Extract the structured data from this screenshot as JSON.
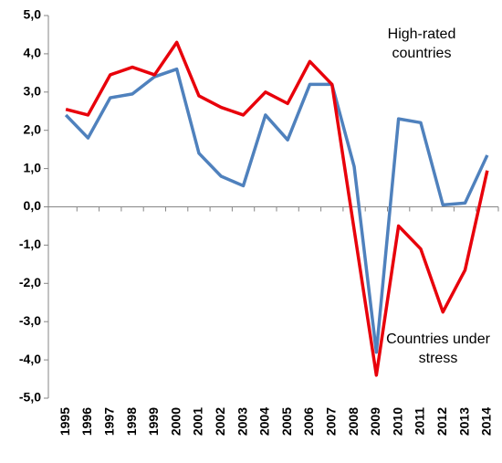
{
  "chart_data": {
    "type": "line",
    "categories": [
      "1995",
      "1996",
      "1997",
      "1998",
      "1999",
      "2000",
      "2001",
      "2002",
      "2003",
      "2004",
      "2005",
      "2006",
      "2007",
      "2008",
      "2009",
      "2010",
      "2011",
      "2012",
      "2013",
      "2014"
    ],
    "series": [
      {
        "name": "High-rated countries",
        "color": "#4f81bd",
        "values": [
          2.4,
          1.8,
          2.85,
          2.95,
          3.4,
          3.6,
          1.4,
          0.8,
          0.55,
          2.4,
          1.75,
          3.2,
          3.2,
          1.05,
          -3.8,
          2.3,
          2.2,
          0.05,
          0.1,
          1.35
        ]
      },
      {
        "name": "Countries under stress",
        "color": "#e8000b",
        "values": [
          2.55,
          2.4,
          3.45,
          3.65,
          3.45,
          4.3,
          2.9,
          2.6,
          2.4,
          3.0,
          2.7,
          3.8,
          3.2,
          -0.6,
          -4.4,
          -0.5,
          -1.1,
          -2.75,
          -1.65,
          0.95
        ]
      }
    ],
    "ylim": [
      -5,
      5
    ],
    "yticks": [
      {
        "value": 5,
        "label": "5,0"
      },
      {
        "value": 4,
        "label": "4,0"
      },
      {
        "value": 3,
        "label": "3,0"
      },
      {
        "value": 2,
        "label": "2,0"
      },
      {
        "value": 1,
        "label": "1,0"
      },
      {
        "value": 0,
        "label": "0,0"
      },
      {
        "value": -1,
        "label": "-1,0"
      },
      {
        "value": -2,
        "label": "-2,0"
      },
      {
        "value": -3,
        "label": "-3,0"
      },
      {
        "value": -4,
        "label": "-4,0"
      },
      {
        "value": -5,
        "label": "-5,0"
      }
    ],
    "grid": false
  }
}
